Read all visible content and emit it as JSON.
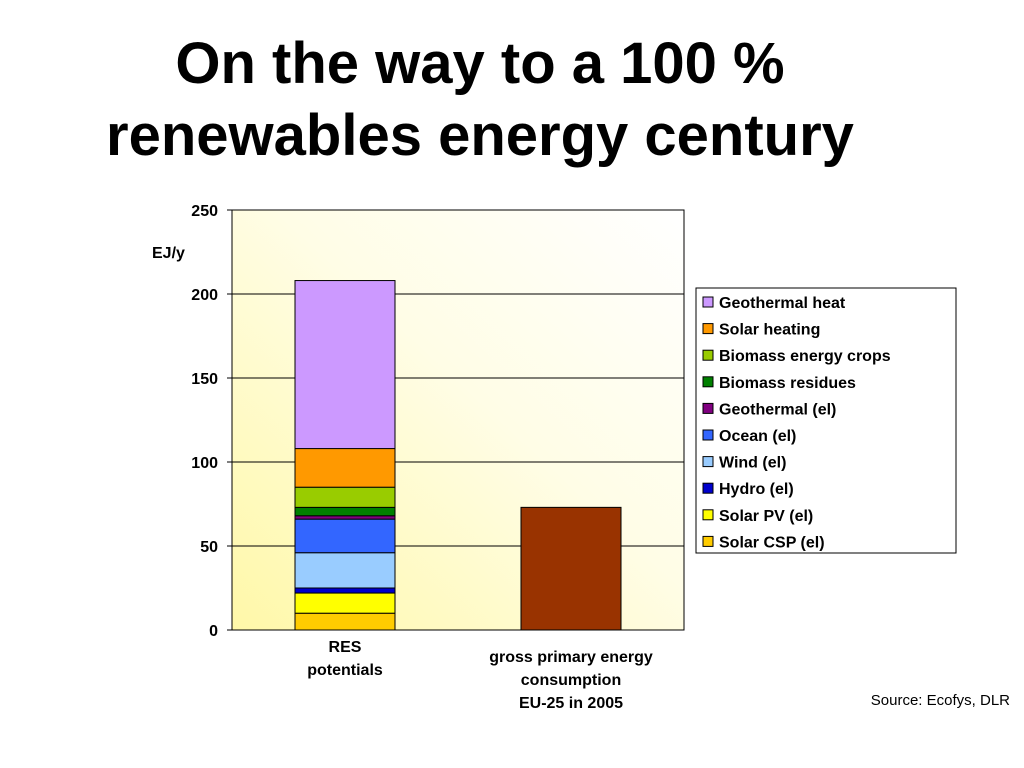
{
  "slide": {
    "title_line1": "On the way to a 100 %",
    "title_line2": "renewables energy century",
    "source": "Source: Ecofys, DLR"
  },
  "chart_data": {
    "type": "bar",
    "stacked": true,
    "ylabel": "EJ/y",
    "ylim": [
      0,
      250
    ],
    "yticks": [
      0,
      50,
      100,
      150,
      200,
      250
    ],
    "grid": true,
    "legend_position": "right",
    "categories": [
      [
        "RES",
        "potentials"
      ],
      [
        "gross primary energy",
        "consumption",
        "EU-25 in 2005"
      ]
    ],
    "series": [
      {
        "name": "Solar CSP (el)",
        "color": "#FFCC00",
        "values": [
          10,
          null
        ]
      },
      {
        "name": "Solar PV (el)",
        "color": "#FFFF00",
        "values": [
          12,
          null
        ]
      },
      {
        "name": "Hydro (el)",
        "color": "#0000CC",
        "values": [
          3,
          null
        ]
      },
      {
        "name": "Wind (el)",
        "color": "#99CCFF",
        "values": [
          21,
          null
        ]
      },
      {
        "name": "Ocean (el)",
        "color": "#3366FF",
        "values": [
          20,
          null
        ]
      },
      {
        "name": "Geothermal (el)",
        "color": "#800080",
        "values": [
          2,
          null
        ]
      },
      {
        "name": "Biomass residues",
        "color": "#008000",
        "values": [
          5,
          null
        ]
      },
      {
        "name": "Biomass energy crops",
        "color": "#99CC00",
        "values": [
          12,
          null
        ]
      },
      {
        "name": "Solar heating",
        "color": "#FF9900",
        "values": [
          23,
          null
        ]
      },
      {
        "name": "Geothermal heat",
        "color": "#CC99FF",
        "values": [
          100,
          null
        ]
      }
    ],
    "total_bar": {
      "category_index": 1,
      "value": 73,
      "color": "#993300"
    }
  }
}
